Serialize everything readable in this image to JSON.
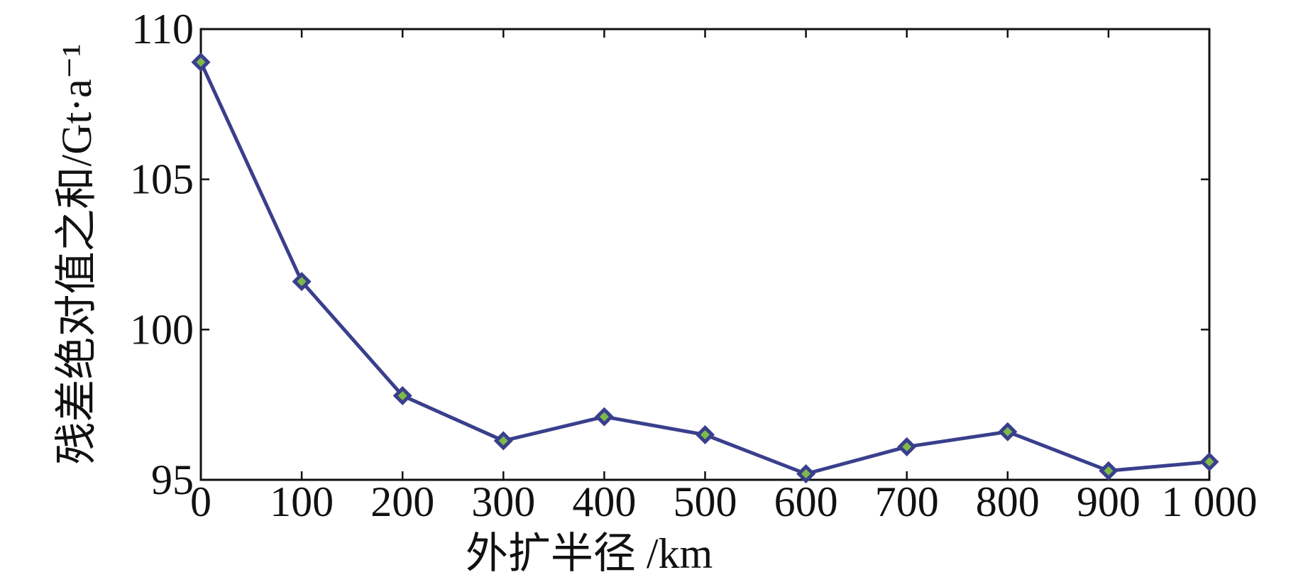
{
  "chart_data": {
    "type": "line",
    "xlabel": "外扩半径 /km",
    "ylabel": "残差绝对值之和/Gt·a⁻¹",
    "x": [
      0,
      100,
      200,
      300,
      400,
      500,
      600,
      700,
      800,
      900,
      1000
    ],
    "series": [
      {
        "color": "#3a3f8c",
        "marker_color": "#7dba4a",
        "values": [
          108.9,
          101.6,
          97.8,
          96.3,
          97.1,
          96.5,
          95.2,
          96.1,
          96.6,
          95.3,
          95.6
        ]
      }
    ],
    "xlim": [
      0,
      1000
    ],
    "xticks": [
      0,
      100,
      200,
      300,
      400,
      500,
      600,
      700,
      800,
      900,
      {
        "value": 1000,
        "label": "1 000"
      }
    ],
    "ylim": [
      95,
      110
    ],
    "yticks": [
      95,
      100,
      105,
      110
    ],
    "grid": false
  }
}
